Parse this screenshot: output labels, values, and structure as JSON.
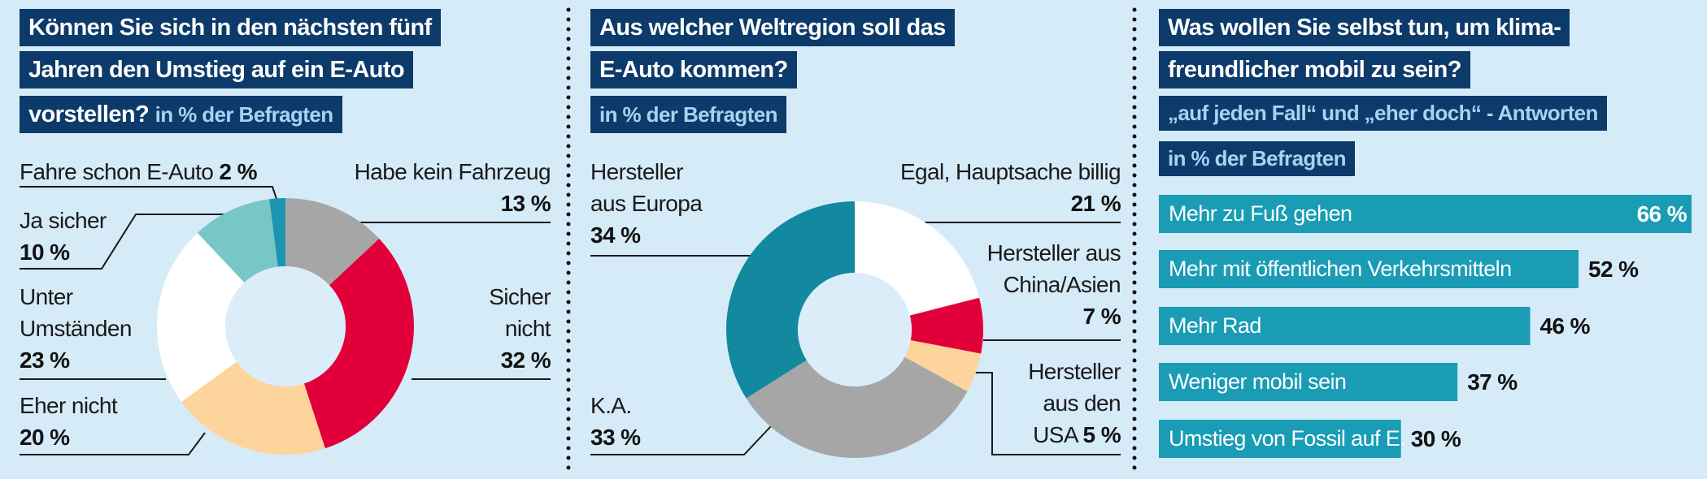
{
  "chart_data": [
    {
      "type": "donut",
      "title": [
        "Können Sie sich in den nächsten fünf",
        "Jahren den Umstieg auf ein E-Auto",
        "vorstellen?"
      ],
      "subtitle": "in % der Befragten",
      "categories": [
        "Habe kein Fahrzeug",
        "Sicher\nnicht",
        "Eher nicht",
        "Unter\nUmständen",
        "Ja sicher",
        "Fahre schon E-Auto"
      ],
      "values": [
        13,
        32,
        20,
        23,
        10,
        2
      ],
      "value_labels": [
        "13 %",
        "32 %",
        "20 %",
        "23 %",
        "10 %",
        "2 %"
      ],
      "colors": [
        "#a6a6a6",
        "#e2003b",
        "#fdd49c",
        "#ffffff",
        "#78c6c6",
        "#1d95b0"
      ]
    },
    {
      "type": "donut",
      "title": [
        "Aus welcher Weltregion soll das",
        "E-Auto kommen?"
      ],
      "subtitle": "in % der Befragten",
      "categories": [
        "Egal, Hauptsache billig",
        "Hersteller aus\nChina/Asien",
        "Hersteller\naus den\nUSA",
        "K.A.",
        "Hersteller\naus Europa"
      ],
      "values": [
        21,
        7,
        5,
        33,
        34
      ],
      "value_labels": [
        "21 %",
        "7 %",
        "5 %",
        "33 %",
        "34 %"
      ],
      "colors": [
        "#ffffff",
        "#e2003b",
        "#fdd49c",
        "#a6a6a6",
        "#12899f"
      ]
    },
    {
      "type": "bar",
      "title": [
        "Was wollen Sie selbst tun, um klima-",
        "freundlicher mobil zu sein?"
      ],
      "subtitle": [
        "„auf jeden Fall“ und „eher doch“ - Antworten",
        "in % der Befragten"
      ],
      "categories": [
        "Mehr zu Fuß gehen",
        "Mehr mit öffentlichen Verkehrsmitteln",
        "Mehr Rad",
        "Weniger mobil sein",
        "Umstieg von Fossil auf E."
      ],
      "values": [
        66,
        52,
        46,
        37,
        30
      ],
      "value_labels": [
        "66 %",
        "52 %",
        "46 %",
        "37 %",
        "30 %"
      ],
      "color": "#1a9cb5"
    }
  ]
}
